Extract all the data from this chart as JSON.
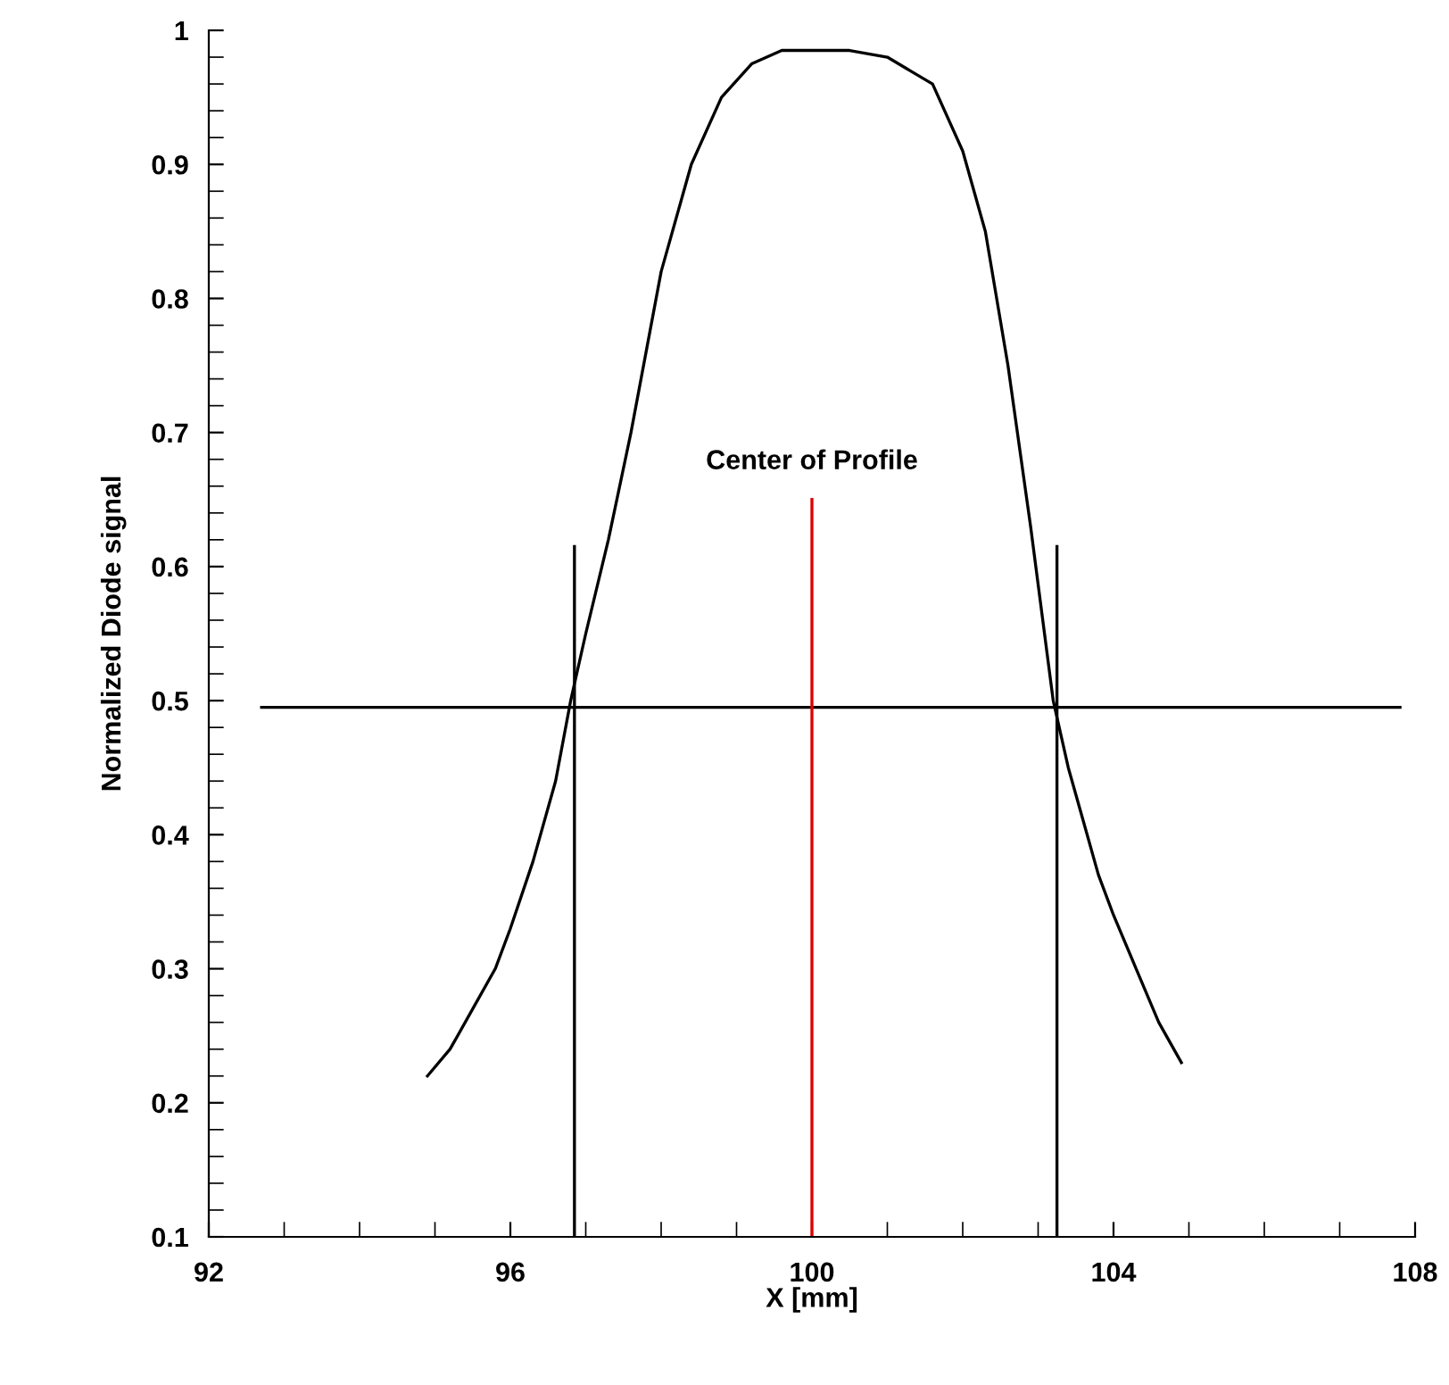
{
  "chart_data": {
    "type": "line",
    "xlabel": "X [mm]",
    "ylabel": "Normalized Diode signal",
    "xlim": [
      92,
      108
    ],
    "xticks": [
      92,
      96,
      100,
      104,
      108
    ],
    "ylim": [
      0.1,
      1
    ],
    "yticks": [
      0.1,
      0.2,
      0.3,
      0.4,
      0.5,
      0.6,
      0.7,
      0.8,
      0.9,
      1
    ],
    "grid": false,
    "legend": false,
    "series": [
      {
        "color": "#000000",
        "x": [
          94.9,
          95.2,
          95.5,
          95.8,
          96.0,
          96.3,
          96.6,
          96.8,
          97.0,
          97.3,
          97.6,
          98.0,
          98.4,
          98.8,
          99.2,
          99.6,
          100.0,
          100.5,
          101.0,
          101.3,
          101.6,
          102.0,
          102.3,
          102.6,
          102.9,
          103.2,
          103.4,
          103.6,
          103.8,
          104.0,
          104.3,
          104.6,
          104.9
        ],
        "values": [
          0.22,
          0.24,
          0.27,
          0.3,
          0.33,
          0.38,
          0.44,
          0.5,
          0.55,
          0.62,
          0.7,
          0.82,
          0.9,
          0.95,
          0.975,
          0.985,
          0.985,
          0.985,
          0.98,
          0.97,
          0.96,
          0.91,
          0.85,
          0.75,
          0.63,
          0.5,
          0.45,
          0.41,
          0.37,
          0.34,
          0.3,
          0.26,
          0.23
        ]
      },
      {
        "color": "#000000",
        "x": [
          92.7,
          107.8
        ],
        "values": [
          0.495,
          0.495
        ]
      },
      {
        "color": "#000000",
        "x": [
          96.85,
          96.85
        ],
        "values": [
          0.1,
          0.615
        ]
      },
      {
        "color": "#000000",
        "x": [
          103.25,
          103.25
        ],
        "values": [
          0.1,
          0.615
        ]
      },
      {
        "color": "#e00000",
        "x": [
          100,
          100
        ],
        "values": [
          0.1,
          0.65
        ]
      }
    ],
    "annotations": [
      {
        "text": "Center of Profile",
        "x": 100,
        "y": 0.65
      }
    ]
  }
}
